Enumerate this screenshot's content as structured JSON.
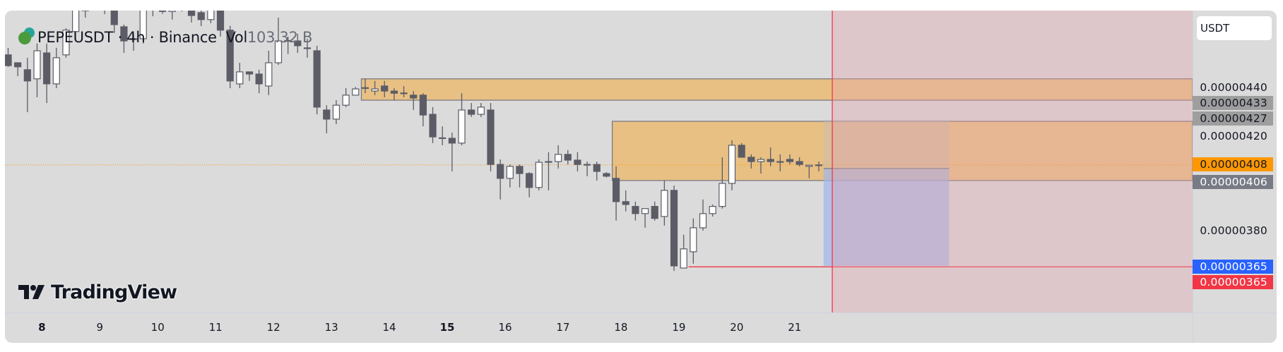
{
  "header": {
    "symbol": "PEPEUSDT",
    "sep1": "·",
    "interval": "4h",
    "sep2": "·",
    "exchange": "Binance",
    "vol_label": "Vol",
    "vol_value": "103.32 B"
  },
  "currency_button": "USDT",
  "price_axis": {
    "ticks": [
      {
        "label": "0.00000440",
        "value": 440
      },
      {
        "label": "0.00000420",
        "value": 420
      },
      {
        "label": "0.00000380",
        "value": 380
      }
    ],
    "badges": [
      {
        "label": "0.00000433",
        "value": 433,
        "bg": "#9e9e9e",
        "fg": "#131722"
      },
      {
        "label": "0.00000427",
        "value": 427,
        "bg": "#9e9e9e",
        "fg": "#131722"
      },
      {
        "label": "0.00000408",
        "value": 408,
        "bg": "#ff9800",
        "fg": "#131722"
      },
      {
        "label": "0.00000406",
        "value": 406,
        "bg": "#787b86",
        "fg": "#ffffff"
      },
      {
        "label": "0.00000365",
        "value": 365,
        "bg": "#2962ff",
        "fg": "#ffffff"
      },
      {
        "label": "0.00000365",
        "value": 365,
        "bg": "#f23645",
        "fg": "#ffffff"
      }
    ]
  },
  "time_axis": [
    {
      "label": "8",
      "bar": 4,
      "bold": true
    },
    {
      "label": "9",
      "bar": 10
    },
    {
      "label": "10",
      "bar": 16
    },
    {
      "label": "11",
      "bar": 22
    },
    {
      "label": "12",
      "bar": 28
    },
    {
      "label": "13",
      "bar": 34
    },
    {
      "label": "14",
      "bar": 40
    },
    {
      "label": "15",
      "bar": 46,
      "bold": true
    },
    {
      "label": "16",
      "bar": 52
    },
    {
      "label": "17",
      "bar": 58
    },
    {
      "label": "18",
      "bar": 64
    },
    {
      "label": "19",
      "bar": 70
    },
    {
      "label": "20",
      "bar": 76
    },
    {
      "label": "21",
      "bar": 82
    }
  ],
  "logo": {
    "text": "TradingView"
  },
  "colors": {
    "bg": "#dbdbdb",
    "down": "#5b5c66",
    "up": "#ffffff",
    "zone": "#e8c084",
    "highlight": "#e6a3ac",
    "last_price": "#ff9800",
    "red_line": "#f23645",
    "blue": "#9fb7ec"
  },
  "chart_data": {
    "type": "candlestick",
    "price_unit": "1e-9 USDT",
    "ylim": [
      315,
      475
    ],
    "last_price": 408,
    "ohlc": [
      [
        453.9,
        456.8,
        448.9,
        449.4
      ],
      [
        450.6,
        450.6,
        445.0,
        448.9
      ],
      [
        447.7,
        452.7,
        430.0,
        443.0
      ],
      [
        443.9,
        458.6,
        436.2,
        455.6
      ],
      [
        454.7,
        458.6,
        433.8,
        441.8
      ],
      [
        441.8,
        456.8,
        440.0,
        452.7
      ],
      [
        453.9,
        465.0,
        452.7,
        464.2
      ],
      [
        463.6,
        480,
        463.6,
        478
      ],
      [
        472.4,
        480,
        469.4,
        472.6
      ],
      [
        476,
        482,
        474,
        479
      ],
      [
        478,
        481,
        470.9,
        476
      ],
      [
        474,
        476,
        463.0,
        466.5
      ],
      [
        465.6,
        466.5,
        454.7,
        459.7
      ],
      [
        460.6,
        462.7,
        455.6,
        460.3
      ],
      [
        460.6,
        476,
        458.6,
        474
      ],
      [
        474,
        478,
        470,
        476
      ],
      [
        476,
        479,
        471,
        472
      ],
      [
        472,
        476,
        468.6,
        475
      ],
      [
        475,
        479,
        472,
        477
      ],
      [
        477,
        479,
        467.4,
        470.3
      ],
      [
        471.5,
        472.4,
        465.9,
        468.6
      ],
      [
        468.6,
        478,
        467.1,
        476
      ],
      [
        476,
        478,
        461.5,
        464.2
      ],
      [
        464.2,
        466,
        440.0,
        443.0
      ],
      [
        441.8,
        450.6,
        440.0,
        446.8
      ],
      [
        446.8,
        446.8,
        443.0,
        445.9
      ],
      [
        445.9,
        447.7,
        437.9,
        441.8
      ],
      [
        440.9,
        455.6,
        437.1,
        450.6
      ],
      [
        450.6,
        469.4,
        449.7,
        459.7
      ],
      [
        459.7,
        461.5,
        454.2,
        459.9
      ],
      [
        459.7,
        462.7,
        454.7,
        457.7
      ],
      [
        456.8,
        460.6,
        452.7,
        456.6
      ],
      [
        455.6,
        457.7,
        429.1,
        432.1
      ],
      [
        430.9,
        432.9,
        421.2,
        427.1
      ],
      [
        427.1,
        435.0,
        425.0,
        432.9
      ],
      [
        432.9,
        440.0,
        432.1,
        437.1
      ],
      [
        437.1,
        440.5,
        437.0,
        439.7
      ],
      [
        440.0,
        443.9,
        437.9,
        440.2
      ],
      [
        438.8,
        443.0,
        437.1,
        439.7
      ],
      [
        440.9,
        443.0,
        436.2,
        438.8
      ],
      [
        438.8,
        440.0,
        435.0,
        437.9
      ],
      [
        437.9,
        440.9,
        436.2,
        438.0
      ],
      [
        437.1,
        438.8,
        430.9,
        435.9
      ],
      [
        437.1,
        437.9,
        424.1,
        428.8
      ],
      [
        429.1,
        432.1,
        417.1,
        419.7
      ],
      [
        419.1,
        424.1,
        416.2,
        419.3
      ],
      [
        419.1,
        421.5,
        405.3,
        417.1
      ],
      [
        417.1,
        437.9,
        416.2,
        430.9
      ],
      [
        430.9,
        433.8,
        428.0,
        429.1
      ],
      [
        429.1,
        433.8,
        428.0,
        432.1
      ],
      [
        430.9,
        433.8,
        405.3,
        408.2
      ],
      [
        408.2,
        410.3,
        393.6,
        402.4
      ],
      [
        402.4,
        408.2,
        398.6,
        407.4
      ],
      [
        407.4,
        408.2,
        398.6,
        404.4
      ],
      [
        404.4,
        405.0,
        394.5,
        398.6
      ],
      [
        398.6,
        410.3,
        397.4,
        409.1
      ],
      [
        409.4,
        413.3,
        397.4,
        409.2
      ],
      [
        409.4,
        416.2,
        406.5,
        412.4
      ],
      [
        412.4,
        414.2,
        408.2,
        410.0
      ],
      [
        410.0,
        413.3,
        405.3,
        408.2
      ],
      [
        408.2,
        409.4,
        403.3,
        408.0
      ],
      [
        408.2,
        409.4,
        401.5,
        405.3
      ],
      [
        404.4,
        405.0,
        402.8,
        403.3
      ],
      [
        402.4,
        407.4,
        384.8,
        392.7
      ],
      [
        392.7,
        397.4,
        388.6,
        391.5
      ],
      [
        390.7,
        392.7,
        384.8,
        387.7
      ],
      [
        387.7,
        389.8,
        381.8,
        389.8
      ],
      [
        390.7,
        392.7,
        384.8,
        385.7
      ],
      [
        386.5,
        401.5,
        382.7,
        397.4
      ],
      [
        397.4,
        399.4,
        363.8,
        365.9
      ],
      [
        365.0,
        378.9,
        365.0,
        373.0
      ],
      [
        371.8,
        385.7,
        366.8,
        381.8
      ],
      [
        381.8,
        393.6,
        380.6,
        387.7
      ],
      [
        387.7,
        391.5,
        386.5,
        390.7
      ],
      [
        390.7,
        411.2,
        389.8,
        400.3
      ],
      [
        400.3,
        418.3,
        397.4,
        416.2
      ],
      [
        416.2,
        417.1,
        411.2,
        411.2
      ],
      [
        411.2,
        412.4,
        406.5,
        409.4
      ],
      [
        409.4,
        411.2,
        404.4,
        410.3
      ],
      [
        410.3,
        415.3,
        407.4,
        409.4
      ],
      [
        409.4,
        412.4,
        405.3,
        409.2
      ],
      [
        410.3,
        412.4,
        408.2,
        409.4
      ],
      [
        409.4,
        411.2,
        407.4,
        408.2
      ],
      [
        407.4,
        407.9,
        402.4,
        407.9
      ],
      [
        407.9,
        409.4,
        405.3,
        408.0
      ]
    ],
    "drawings": {
      "zones": [
        {
          "from_bar": 36.6,
          "top": 443.9,
          "bottom": 435.0
        },
        {
          "from_bar": 62.6,
          "top": 426.2,
          "bottom": 401.5
        }
      ],
      "position_tool": {
        "from_bar": 84.5,
        "to_bar": 97.5,
        "top": 426.8,
        "entry": 406.5,
        "bottom": 365.9
      },
      "stop_line": {
        "from_bar": 70.5,
        "value": 365.5
      },
      "highlight_from_bar": 85.4
    }
  }
}
